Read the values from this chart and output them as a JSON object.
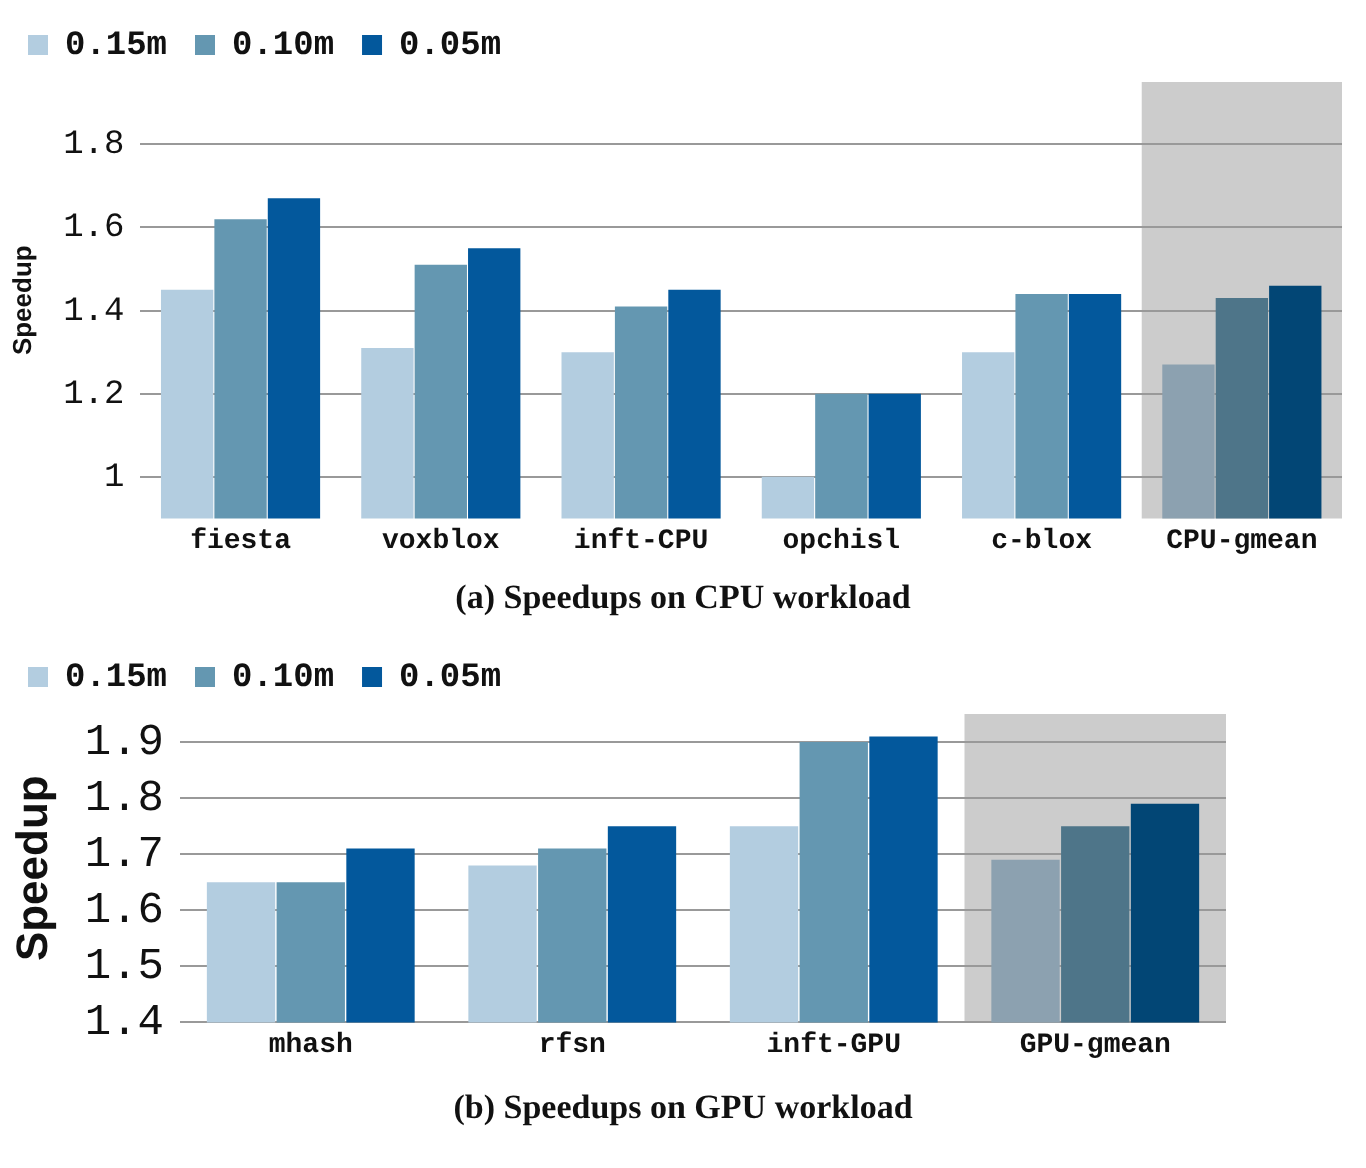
{
  "chart_data": [
    {
      "type": "bar",
      "title": "(a) Speedups on CPU workload",
      "ylabel": "Speedup",
      "categories": [
        "fiesta",
        "voxblox",
        "inft-CPU",
        "opchisl",
        "c-blox",
        "CPU-gmean"
      ],
      "series": [
        {
          "name": "0.15m",
          "color": "#b3cde0",
          "colors": [
            "#b3cde0",
            "#b3cde0",
            "#b3cde0",
            "#b3cde0",
            "#b3cde0",
            "#8ca1b0"
          ],
          "values": [
            1.45,
            1.31,
            1.3,
            1.0,
            1.3,
            1.27
          ]
        },
        {
          "name": "0.10m",
          "color": "#6497b1",
          "colors": [
            "#6497b1",
            "#6497b1",
            "#6497b1",
            "#6497b1",
            "#6497b1",
            "#4e7589"
          ],
          "values": [
            1.62,
            1.51,
            1.41,
            1.2,
            1.44,
            1.43
          ]
        },
        {
          "name": "0.05m",
          "color": "#03589c",
          "colors": [
            "#03589c",
            "#03589c",
            "#03589c",
            "#03589c",
            "#03589c",
            "#024675"
          ],
          "values": [
            1.67,
            1.55,
            1.45,
            1.2,
            1.44,
            1.46
          ]
        }
      ],
      "ylim": [
        0.9,
        1.95
      ],
      "yticks": [
        1,
        1.2,
        1.4,
        1.6,
        1.8
      ],
      "grid": "y",
      "legend": "top left",
      "bands": [
        {
          "axis": "x",
          "from": "CPU-gmean",
          "to": "CPU-gmean",
          "color": "#cccccc"
        }
      ]
    },
    {
      "type": "bar",
      "title": "(b) Speedups on GPU workload",
      "ylabel": "Speedup",
      "categories": [
        "mhash",
        "rfsn",
        "inft-GPU",
        "GPU-gmean"
      ],
      "series": [
        {
          "name": "0.15m",
          "color": "#b3cde0",
          "colors": [
            "#b3cde0",
            "#b3cde0",
            "#b3cde0",
            "#8ca1b0"
          ],
          "values": [
            1.65,
            1.68,
            1.75,
            1.69
          ]
        },
        {
          "name": "0.10m",
          "color": "#6497b1",
          "colors": [
            "#6497b1",
            "#6497b1",
            "#6497b1",
            "#4e7589"
          ],
          "values": [
            1.65,
            1.71,
            1.9,
            1.75
          ]
        },
        {
          "name": "0.05m",
          "color": "#03589c",
          "colors": [
            "#03589c",
            "#03589c",
            "#03589c",
            "#024675"
          ],
          "values": [
            1.71,
            1.75,
            1.91,
            1.79
          ]
        }
      ],
      "ylim": [
        1.4,
        1.95
      ],
      "yticks": [
        1.4,
        1.5,
        1.6,
        1.7,
        1.8,
        1.9
      ],
      "grid": "y",
      "legend": "top left",
      "bands": [
        {
          "axis": "x",
          "from": "GPU-gmean",
          "to": "GPU-gmean",
          "color": "#cccccc"
        }
      ]
    }
  ]
}
